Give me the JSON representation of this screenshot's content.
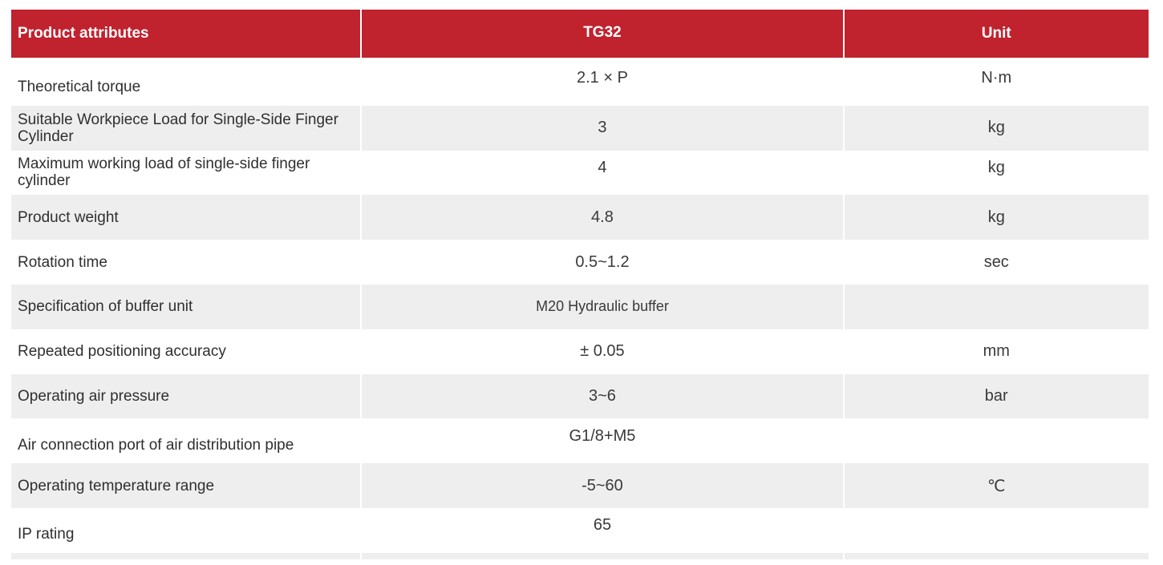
{
  "table": {
    "header": {
      "attribute": "Product attributes",
      "model": "TG32",
      "unit": "Unit"
    },
    "rows": [
      {
        "attribute": "Theoretical torque",
        "value": "2.1 × P",
        "unit": "N·m"
      },
      {
        "attribute": "Suitable Workpiece Load for Single-Side Finger Cylinder",
        "value": "3",
        "unit": "kg"
      },
      {
        "attribute": "Maximum working load of single-side finger cylinder",
        "value": "4",
        "unit": "kg"
      },
      {
        "attribute": "Product weight",
        "value": "4.8",
        "unit": "kg"
      },
      {
        "attribute": "Rotation time",
        "value": "0.5~1.2",
        "unit": "sec"
      },
      {
        "attribute": "Specification of buffer unit",
        "value": "M20 Hydraulic buffer",
        "unit": ""
      },
      {
        "attribute": "Repeated positioning accuracy",
        "value": "± 0.05",
        "unit": "mm"
      },
      {
        "attribute": "Operating air pressure",
        "value": "3~6",
        "unit": "bar"
      },
      {
        "attribute": "Air connection port of air distribution pipe",
        "value": "G1/8+M5",
        "unit": ""
      },
      {
        "attribute": "Operating temperature range",
        "value": "-5~60",
        "unit": "℃"
      },
      {
        "attribute": "IP rating",
        "value": "65",
        "unit": ""
      }
    ]
  },
  "colors": {
    "header_bg": "#c0222e",
    "header_text": "#ffffff",
    "shaded_row": "#eeeeef"
  }
}
